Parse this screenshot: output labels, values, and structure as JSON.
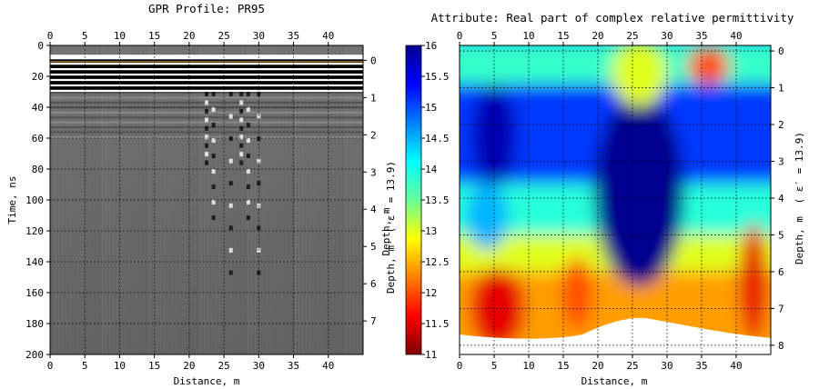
{
  "colors": {
    "grid": "#222222",
    "background": "#ffffff"
  },
  "chart_data": [
    {
      "type": "heatmap",
      "title": "GPR Profile: PR95",
      "xlabel": "Distance, m",
      "ylabel": "Time, ns",
      "y2label": "Depth, m",
      "y2label_eps": "( ε′ = 13.9)",
      "xlim": [
        0,
        45
      ],
      "ylim": [
        0,
        200
      ],
      "y2lim": [
        -0.4,
        7.9
      ],
      "xticks": [
        "0",
        "5",
        "10",
        "15",
        "20",
        "25",
        "30",
        "35",
        "40"
      ],
      "yticks": [
        "0",
        "20",
        "40",
        "60",
        "80",
        "100",
        "120",
        "140",
        "160",
        "180",
        "200"
      ],
      "y2ticks": [
        "0",
        "1",
        "2",
        "3",
        "4",
        "5",
        "6",
        "7"
      ],
      "grid": true,
      "colormap": "grayscale radargram",
      "strong_reflectors_ns": [
        10,
        15,
        20,
        25
      ],
      "hyperbola_positions_m": [
        22.5,
        23.5,
        26,
        27.5,
        28.5,
        30
      ]
    },
    {
      "type": "heatmap",
      "title": "Attribute:  Real part of complex relative permittivity",
      "xlabel": "Distance, m",
      "ylabel": "Depth, m",
      "y2label": "Depth, m",
      "y2label_eps": "( ε′ = 13.9)",
      "xlim": [
        0,
        45
      ],
      "ylim": [
        -0.15,
        8.25
      ],
      "xticks": [
        "0",
        "5",
        "10",
        "15",
        "20",
        "25",
        "30",
        "35",
        "40"
      ],
      "yticks": [
        "0",
        "1",
        "2",
        "3",
        "4",
        "5",
        "6",
        "7",
        "8"
      ],
      "grid": true,
      "colormap": "jet",
      "colorbar": {
        "min": 11,
        "max": 16,
        "ticks": [
          "11",
          "11.5",
          "12",
          "12.5",
          "13",
          "13.5",
          "14",
          "14.5",
          "15",
          "15.5",
          "16"
        ]
      },
      "regions": [
        {
          "x": 5,
          "depth": 2.3,
          "value": 15.8
        },
        {
          "x": 26,
          "depth": 3.8,
          "value": 16
        },
        {
          "x": 4,
          "depth": 4.5,
          "value": 14.5
        },
        {
          "x": 5.5,
          "depth": 7.0,
          "value": 11.5
        },
        {
          "x": 17,
          "depth": 6.6,
          "value": 12.0
        },
        {
          "x": 42.5,
          "depth": 6.3,
          "value": 11.5
        },
        {
          "x": 36,
          "depth": 0.4,
          "value": 12.0
        },
        {
          "x": 26,
          "depth": 0.6,
          "value": 13.0
        }
      ]
    }
  ]
}
